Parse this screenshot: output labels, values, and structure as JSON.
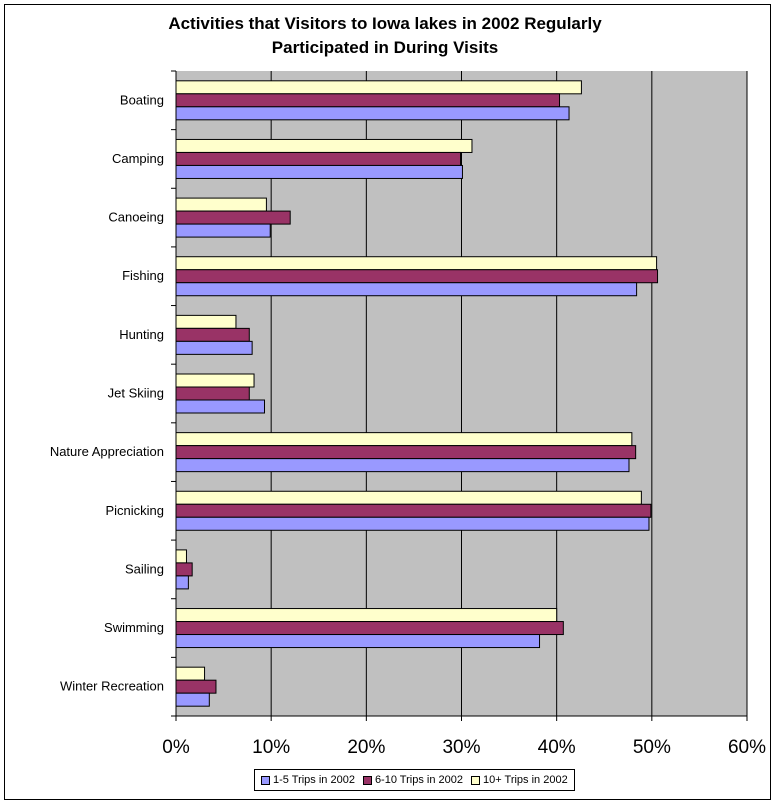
{
  "chart_data": {
    "type": "bar",
    "orientation": "horizontal",
    "title_lines": [
      "Activities that Visitors to Iowa lakes in 2002 Regularly",
      "Participated in During Visits"
    ],
    "categories": [
      "Boating",
      "Camping",
      "Canoeing",
      "Fishing",
      "Hunting",
      "Jet Skiing",
      "Nature Appreciation",
      "Picnicking",
      "Sailing",
      "Swimming",
      "Winter Recreation"
    ],
    "series": [
      {
        "name": "1-5 Trips in 2002",
        "color": "#9999ff",
        "values": [
          41.3,
          30.1,
          9.9,
          48.4,
          8.0,
          9.3,
          47.6,
          49.7,
          1.3,
          38.2,
          3.5
        ]
      },
      {
        "name": "6-10 Trips in 2002",
        "color": "#993366",
        "values": [
          40.3,
          29.9,
          12.0,
          50.6,
          7.7,
          7.7,
          48.3,
          49.9,
          1.7,
          40.7,
          4.2
        ]
      },
      {
        "name": "10+ Trips in 2002",
        "color": "#ffffcc",
        "values": [
          42.6,
          31.1,
          9.5,
          50.5,
          6.3,
          8.2,
          47.9,
          48.9,
          1.1,
          40.0,
          3.0
        ]
      }
    ],
    "xlim": [
      0,
      60
    ],
    "xticks": [
      "0%",
      "10%",
      "20%",
      "30%",
      "40%",
      "50%",
      "60%"
    ],
    "xgrid": true,
    "plot_background": "#c0c0c0",
    "legend_position": "bottom"
  }
}
